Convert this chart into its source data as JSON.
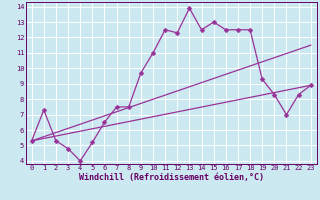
{
  "xlabel": "Windchill (Refroidissement éolien,°C)",
  "ylabel": "",
  "bg_color": "#cce8f0",
  "grid_color": "#ffffff",
  "line_color": "#993399",
  "xlim": [
    -0.5,
    23.5
  ],
  "ylim": [
    3.8,
    14.3
  ],
  "xticks": [
    0,
    1,
    2,
    3,
    4,
    5,
    6,
    7,
    8,
    9,
    10,
    11,
    12,
    13,
    14,
    15,
    16,
    17,
    18,
    19,
    20,
    21,
    22,
    23
  ],
  "yticks": [
    4,
    5,
    6,
    7,
    8,
    9,
    10,
    11,
    12,
    13,
    14
  ],
  "series1_x": [
    0,
    1,
    2,
    3,
    4,
    5,
    6,
    7,
    8,
    9,
    10,
    11,
    12,
    13,
    14,
    15,
    16,
    17,
    18,
    19,
    20,
    21,
    22,
    23
  ],
  "series1_y": [
    5.3,
    7.3,
    5.3,
    4.8,
    4.0,
    5.2,
    6.5,
    7.5,
    7.5,
    9.7,
    11.0,
    12.5,
    12.3,
    13.9,
    12.5,
    13.0,
    12.5,
    12.5,
    12.5,
    9.3,
    8.3,
    7.0,
    8.3,
    8.9
  ],
  "series2_x": [
    0,
    23
  ],
  "series2_y": [
    5.3,
    8.9
  ],
  "series3_x": [
    0,
    23
  ],
  "series3_y": [
    5.3,
    11.5
  ],
  "marker": "D",
  "marker_size": 2.5,
  "line_width": 0.9,
  "axis_fontsize": 5.5,
  "tick_fontsize": 5,
  "xlabel_fontsize": 6,
  "spine_color": "#660066",
  "tick_color": "#660066",
  "label_color": "#660066"
}
